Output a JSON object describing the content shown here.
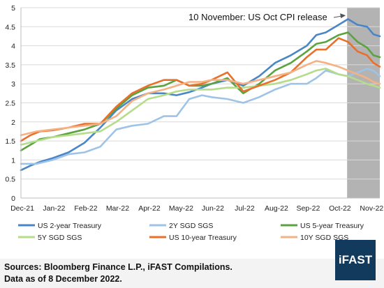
{
  "chart_data": {
    "type": "line",
    "title": "",
    "xlabel": "",
    "ylabel": "",
    "ylim": [
      0,
      5
    ],
    "y_ticks": [
      "0",
      "0.5",
      "1",
      "1.5",
      "2",
      "2.5",
      "3",
      "3.5",
      "4",
      "4.5",
      "5"
    ],
    "x_ticks": [
      "Dec-21",
      "Jan-22",
      "Feb-22",
      "Mar-22",
      "Apr-22",
      "May-22",
      "Jun-22",
      "Jul-22",
      "Aug-22",
      "Sep-22",
      "Oct-22",
      "Nov-22"
    ],
    "x_tick_positions": [
      0,
      1,
      2,
      3,
      4,
      5,
      6,
      7,
      8,
      9,
      10,
      11
    ],
    "xlim": [
      0,
      11.3
    ],
    "grid": true,
    "legend_position": "bottom",
    "shaded_region": {
      "x_start": 10.27,
      "x_end": 11.3,
      "color": "#b3b3b3"
    },
    "annotation": {
      "text": "10 November: US Oct CPI release",
      "arrow_to_x": 10.27,
      "arrow_to_y": 4.87
    },
    "series": [
      {
        "name": "US 2-year Treasury",
        "color": "#4a86c6",
        "x": [
          0,
          0.3,
          0.6,
          1,
          1.5,
          2,
          2.5,
          3,
          3.5,
          4,
          4.5,
          4.9,
          5.3,
          5.7,
          6,
          6.5,
          7,
          7.5,
          8,
          8.5,
          9,
          9.3,
          9.6,
          10,
          10.3,
          10.6,
          10.9,
          11.1,
          11.3
        ],
        "values": [
          0.73,
          0.85,
          0.95,
          1.05,
          1.2,
          1.45,
          1.85,
          2.3,
          2.6,
          2.75,
          2.75,
          2.7,
          2.78,
          2.9,
          3.0,
          3.1,
          2.95,
          3.2,
          3.55,
          3.75,
          4.0,
          4.28,
          4.35,
          4.55,
          4.7,
          4.55,
          4.5,
          4.3,
          4.25
        ]
      },
      {
        "name": "2Y SGD SGS",
        "color": "#9ec3e6",
        "x": [
          0,
          0.5,
          1,
          1.5,
          2,
          2.5,
          3,
          3.5,
          4,
          4.5,
          4.9,
          5.3,
          5.7,
          6,
          6.5,
          7,
          7.5,
          8,
          8.5,
          9,
          9.3,
          9.6,
          10,
          10.3,
          10.6,
          10.9,
          11.1,
          11.3
        ],
        "values": [
          0.9,
          0.9,
          1.0,
          1.15,
          1.2,
          1.35,
          1.8,
          1.9,
          1.95,
          2.15,
          2.15,
          2.6,
          2.7,
          2.65,
          2.6,
          2.5,
          2.65,
          2.85,
          3.0,
          3.0,
          3.15,
          3.35,
          3.25,
          3.2,
          3.3,
          3.4,
          3.35,
          3.2
        ]
      },
      {
        "name": "US 5-year Treasury",
        "color": "#5aa33f",
        "x": [
          0,
          0.3,
          0.6,
          1,
          1.5,
          2,
          2.5,
          3,
          3.5,
          4,
          4.5,
          4.9,
          5.3,
          5.7,
          6,
          6.5,
          7,
          7.5,
          8,
          8.5,
          9,
          9.3,
          9.6,
          10,
          10.3,
          10.6,
          10.9,
          11.1,
          11.3
        ],
        "values": [
          1.25,
          1.4,
          1.55,
          1.6,
          1.7,
          1.8,
          1.95,
          2.35,
          2.7,
          2.9,
          2.95,
          3.1,
          2.95,
          2.95,
          3.0,
          3.15,
          2.75,
          3.0,
          3.35,
          3.55,
          3.85,
          4.05,
          4.1,
          4.28,
          4.35,
          4.1,
          3.95,
          3.75,
          3.7
        ]
      },
      {
        "name": "5Y SGD SGS",
        "color": "#b5dc8a",
        "x": [
          0,
          0.5,
          1,
          1.5,
          2,
          2.5,
          3,
          3.5,
          4,
          4.5,
          4.9,
          5.3,
          5.7,
          6,
          6.5,
          7,
          7.5,
          8,
          8.5,
          9,
          9.3,
          9.6,
          10,
          10.3,
          10.6,
          10.9,
          11.1,
          11.3
        ],
        "values": [
          1.4,
          1.5,
          1.6,
          1.65,
          1.7,
          1.75,
          2.0,
          2.3,
          2.6,
          2.7,
          2.8,
          2.85,
          2.85,
          2.85,
          2.9,
          2.9,
          2.95,
          3.0,
          3.1,
          3.25,
          3.35,
          3.4,
          3.25,
          3.2,
          3.1,
          3.0,
          2.95,
          2.9
        ]
      },
      {
        "name": "US 10-year Treasury",
        "color": "#e8702a",
        "x": [
          0,
          0.3,
          0.6,
          1,
          1.5,
          2,
          2.5,
          3,
          3.5,
          4,
          4.5,
          4.9,
          5.3,
          5.7,
          6,
          6.5,
          7,
          7.5,
          8,
          8.5,
          9,
          9.3,
          9.6,
          10,
          10.3,
          10.6,
          10.9,
          11.1,
          11.3
        ],
        "values": [
          1.5,
          1.65,
          1.75,
          1.78,
          1.85,
          1.95,
          1.95,
          2.4,
          2.75,
          2.95,
          3.1,
          3.1,
          2.95,
          3.0,
          3.1,
          3.3,
          2.8,
          2.95,
          3.1,
          3.3,
          3.7,
          3.9,
          3.9,
          4.2,
          4.1,
          3.85,
          3.75,
          3.55,
          3.45
        ]
      },
      {
        "name": "10Y SGD SGS",
        "color": "#f4b183",
        "x": [
          0,
          0.5,
          1,
          1.5,
          2,
          2.5,
          3,
          3.5,
          4,
          4.5,
          4.9,
          5.3,
          5.7,
          6,
          6.5,
          7,
          7.5,
          8,
          8.5,
          9,
          9.3,
          9.6,
          10,
          10.3,
          10.6,
          10.9,
          11.1,
          11.3
        ],
        "values": [
          1.65,
          1.75,
          1.8,
          1.85,
          1.9,
          1.95,
          2.15,
          2.55,
          2.75,
          2.85,
          2.95,
          3.05,
          3.05,
          3.1,
          3.1,
          3.0,
          3.1,
          3.2,
          3.3,
          3.5,
          3.6,
          3.55,
          3.45,
          3.35,
          3.25,
          3.15,
          3.05,
          3.0
        ]
      }
    ]
  },
  "footer": {
    "source": "Sources: Bloomberg Finance L.P., iFAST Compilations.",
    "date": "Data as of 8 December 2022."
  },
  "logo": {
    "text": "iFAST"
  }
}
